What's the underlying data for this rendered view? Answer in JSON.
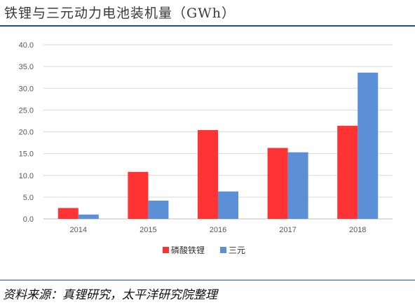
{
  "title": "铁锂与三元动力电池装机量（GWh）",
  "source": "资料来源：真锂研究，太平洋研究院整理",
  "chart_data": {
    "type": "bar",
    "title": "",
    "xlabel": "",
    "ylabel": "",
    "categories": [
      "2014",
      "2015",
      "2016",
      "2017",
      "2018"
    ],
    "series": [
      {
        "name": "磷酸铁锂",
        "color": "#ff3333",
        "values": [
          2.5,
          10.8,
          20.4,
          16.3,
          21.4
        ]
      },
      {
        "name": "三元",
        "color": "#5b8fd6",
        "values": [
          1.0,
          4.2,
          6.3,
          15.3,
          33.6
        ]
      }
    ],
    "ylim": [
      0,
      40
    ],
    "yticks": [
      "0.0",
      "5.0",
      "10.0",
      "15.0",
      "20.0",
      "25.0",
      "30.0",
      "35.0",
      "40.0"
    ],
    "grid": true,
    "legend": "bottom-center"
  }
}
